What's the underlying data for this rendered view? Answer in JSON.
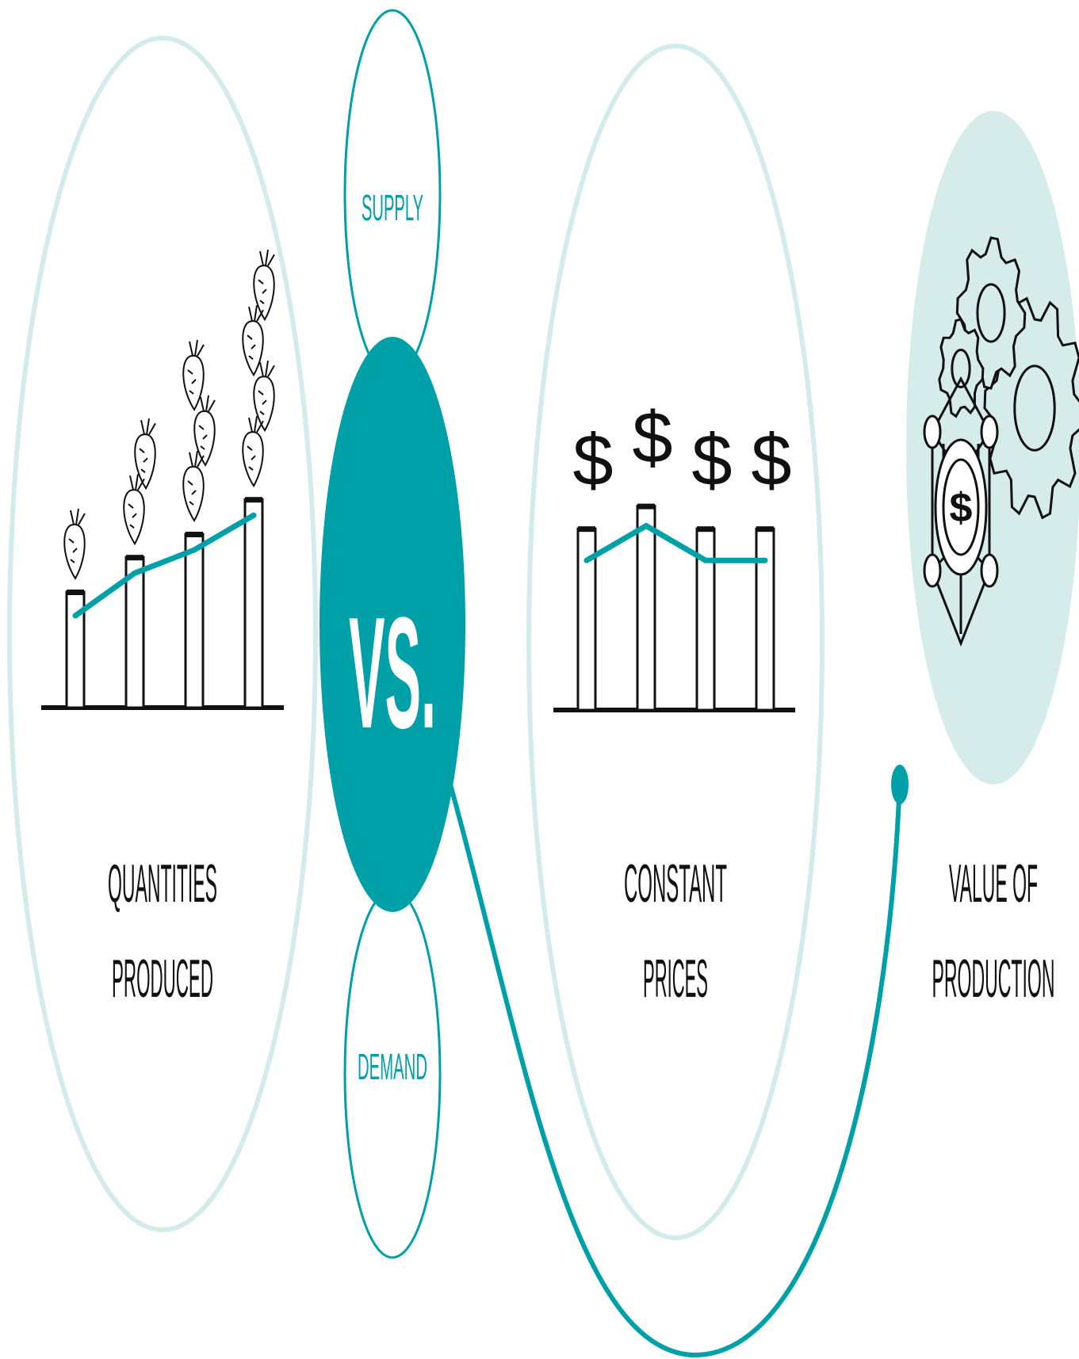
{
  "labels": {
    "quantities_line1": "QUANTITIES",
    "quantities_line2": "PRODUCED",
    "supply": "SUPPLY",
    "vs": "VS.",
    "demand": "DEMAND",
    "constant_line1": "CONSTANT",
    "constant_line2": "PRICES",
    "value_line1": "VALUE OF",
    "value_line2": "PRODUCTION",
    "dollar": "$"
  },
  "colors": {
    "teal": "#00a0a8",
    "light_teal": "#d6ecea",
    "light_outline": "#d3ebea",
    "dark": "#111111"
  },
  "icons": {
    "quantities": "vegetable-bar-chart-icon",
    "prices": "dollar-bar-chart-icon",
    "production": "gears-dollar-network-icon"
  },
  "chart_data": [
    {
      "type": "bar",
      "title": "",
      "xlabel": "",
      "ylabel": "",
      "categories": [
        "",
        "",
        "",
        ""
      ],
      "values": [
        1.0,
        1.3,
        1.5,
        1.8
      ],
      "trend_line": true,
      "marker_icon_counts": [
        1,
        2,
        3,
        4
      ]
    },
    {
      "type": "bar",
      "title": "",
      "xlabel": "",
      "ylabel": "",
      "categories": [
        "",
        "",
        "",
        ""
      ],
      "values": [
        1.6,
        1.8,
        1.6,
        1.6
      ],
      "trend_line": true,
      "marker_labels": [
        "$",
        "$",
        "$",
        "$"
      ]
    }
  ]
}
